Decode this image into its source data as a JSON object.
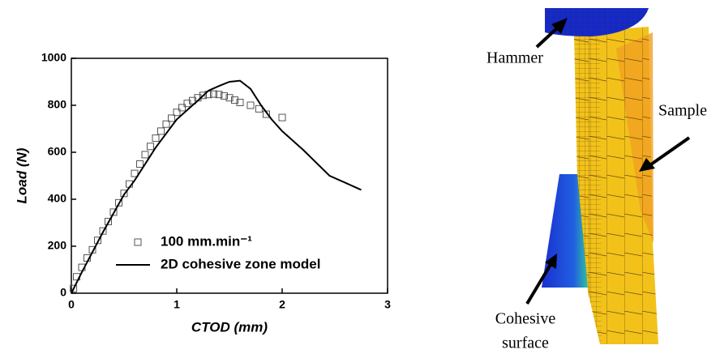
{
  "chart_data": {
    "type": "scatter",
    "xlabel": "CTOD (mm)",
    "ylabel": "Load (N)",
    "xlim": [
      0,
      3
    ],
    "xticks": [
      0,
      1,
      2,
      3
    ],
    "ylim": [
      0,
      1000
    ],
    "yticks": [
      0,
      200,
      400,
      600,
      800,
      1000
    ],
    "legend": "lower right",
    "series": [
      {
        "name": "100 mm.min⁻¹",
        "mode": "markers",
        "color": "#555555",
        "x": [
          0.02,
          0.05,
          0.1,
          0.15,
          0.2,
          0.25,
          0.3,
          0.35,
          0.4,
          0.45,
          0.5,
          0.55,
          0.6,
          0.65,
          0.7,
          0.75,
          0.8,
          0.85,
          0.9,
          0.95,
          1.0,
          1.05,
          1.1,
          1.15,
          1.2,
          1.25,
          1.3,
          1.35,
          1.4,
          1.45,
          1.5,
          1.55,
          1.6,
          1.7,
          1.78,
          1.85,
          2.0
        ],
        "values": [
          20,
          70,
          110,
          150,
          185,
          225,
          265,
          305,
          345,
          385,
          425,
          465,
          510,
          550,
          590,
          625,
          660,
          690,
          720,
          745,
          770,
          790,
          808,
          820,
          832,
          842,
          846,
          848,
          846,
          840,
          832,
          822,
          812,
          800,
          785,
          762,
          748
        ]
      },
      {
        "name": "2D cohesive zone model",
        "mode": "line",
        "color": "#000000",
        "x": [
          0,
          0.1,
          0.3,
          0.5,
          0.6,
          0.8,
          1.0,
          1.2,
          1.3,
          1.4,
          1.5,
          1.6,
          1.7,
          1.8,
          1.9,
          2.0,
          2.2,
          2.45,
          2.6,
          2.75
        ],
        "values": [
          0,
          90,
          260,
          420,
          480,
          620,
          740,
          820,
          862,
          882,
          900,
          905,
          870,
          800,
          740,
          690,
          610,
          500,
          470,
          440
        ]
      }
    ]
  },
  "figure": {
    "labels": {
      "hammer": "Hammer",
      "sample": "Sample",
      "cohesive_1": "Cohesive",
      "cohesive_2": "surface"
    }
  }
}
